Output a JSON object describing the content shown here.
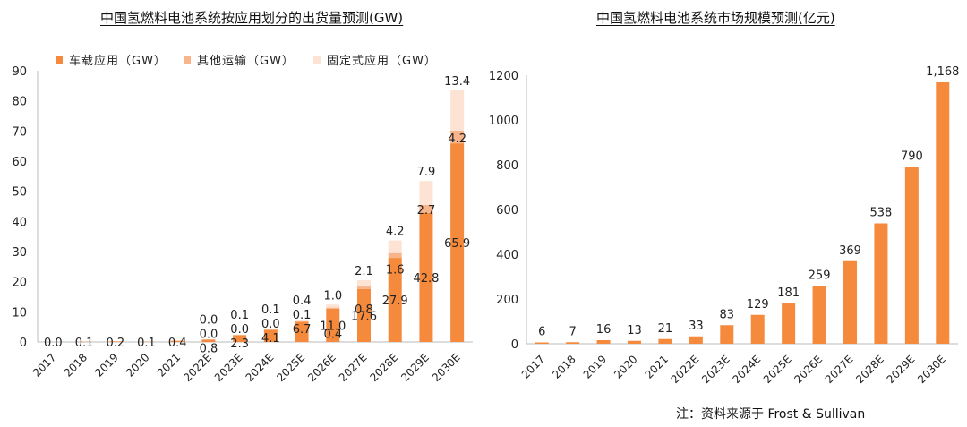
{
  "chart_data": [
    {
      "type": "bar",
      "stacked": true,
      "title": "中国氢燃料电池系统按应用划分的出货量预测(GW)",
      "categories": [
        "2017",
        "2018",
        "2019",
        "2020",
        "2021",
        "2022E",
        "2023E",
        "2024E",
        "2025E",
        "2026E",
        "2027E",
        "2028E",
        "2029E",
        "2030E"
      ],
      "series": [
        {
          "name": "车载应用（GW）",
          "color": "#f58a3c",
          "values": [
            0.0,
            0.1,
            0.2,
            0.1,
            0.4,
            0.8,
            2.3,
            4.1,
            6.7,
            11.0,
            17.6,
            27.9,
            42.8,
            65.9
          ]
        },
        {
          "name": "其他运输（GW）",
          "color": "#f8b48a",
          "values": [
            null,
            null,
            null,
            null,
            null,
            0.0,
            0.0,
            0.0,
            0.1,
            0.4,
            0.8,
            1.6,
            2.7,
            4.2
          ]
        },
        {
          "name": "固定式应用（GW）",
          "color": "#fce3d4",
          "values": [
            null,
            null,
            null,
            null,
            null,
            0.0,
            0.1,
            0.1,
            0.4,
            1.0,
            2.1,
            4.2,
            7.9,
            13.4
          ]
        }
      ],
      "ylim": [
        0,
        90
      ],
      "yticks": [
        0,
        10,
        20,
        30,
        40,
        50,
        60,
        70,
        80,
        90
      ],
      "legend": "top",
      "xlabel": "",
      "ylabel": ""
    },
    {
      "type": "bar",
      "title": "中国氢燃料电池系统市场规模预测(亿元)",
      "categories": [
        "2017",
        "2018",
        "2019",
        "2020",
        "2021",
        "2022E",
        "2023E",
        "2024E",
        "2025E",
        "2026E",
        "2027E",
        "2028E",
        "2029E",
        "2030E"
      ],
      "values": [
        6,
        7,
        16,
        13,
        21,
        33,
        83,
        129,
        181,
        259,
        369,
        538,
        790,
        1168
      ],
      "labels": [
        "6",
        "7",
        "16",
        "13",
        "21",
        "33",
        "83",
        "129",
        "181",
        "259",
        "369",
        "538",
        "790",
        "1,168"
      ],
      "color": "#f58a3c",
      "ylim": [
        0,
        1200
      ],
      "yticks": [
        0,
        200,
        400,
        600,
        800,
        1000,
        1200
      ],
      "xlabel": "",
      "ylabel": ""
    }
  ],
  "source_note": "注：资料来源于 Frost & Sullivan"
}
